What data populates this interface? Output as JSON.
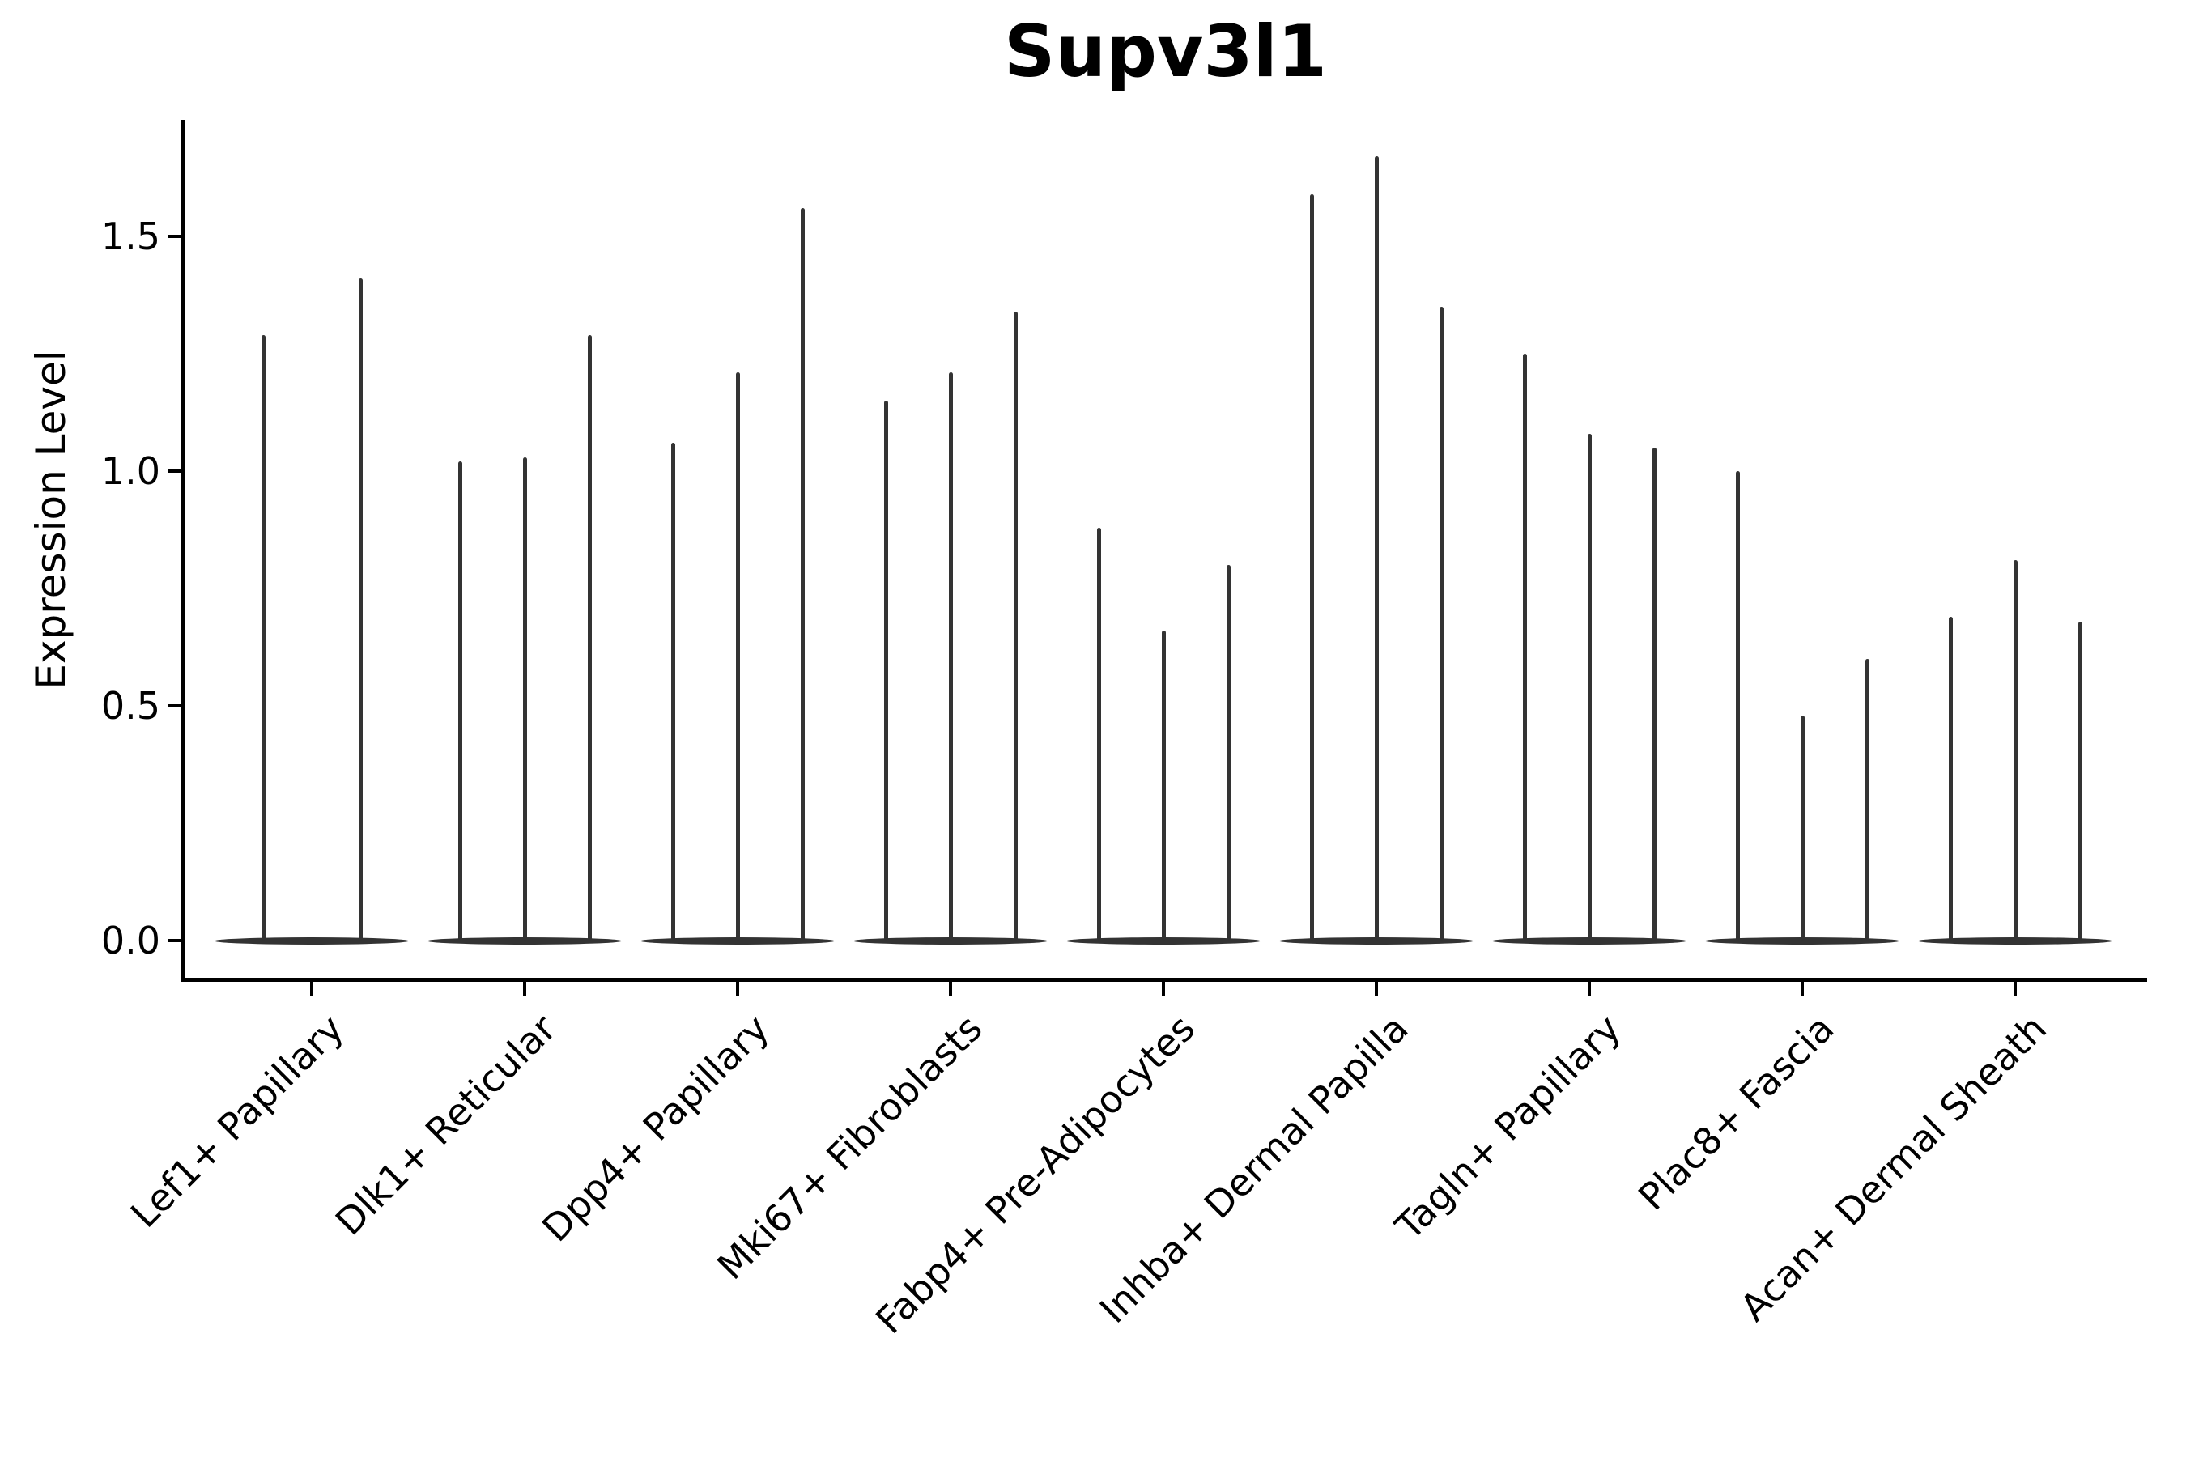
{
  "title": "Supv3l1",
  "axes": {
    "ylabel": "Expression Level"
  },
  "chart_data": {
    "type": "violin",
    "title": "Supv3l1",
    "xlabel": "",
    "ylabel": "Expression Level",
    "ylim": [
      -0.08,
      1.75
    ],
    "yticks": [
      0.0,
      0.5,
      1.0,
      1.5
    ],
    "ytick_labels": [
      "0.0",
      "0.5",
      "1.0",
      "1.5"
    ],
    "grid": false,
    "legend": null,
    "violin_color": "#333333",
    "axis_color": "#000000",
    "description": "Violin plot of gene expression; each category shows violins flattened at 0 with thin density spikes reaching the maximum expression values.",
    "categories": [
      "Lef1+ Papillary",
      "Dlk1+ Reticular",
      "Dpp4+ Papillary",
      "Mki67+ Fibroblasts",
      "Fabp4+ Pre-Adipocytes",
      "Inhba+ Dermal Papilla",
      "Tagln+ Papillary",
      "Plac8+ Fascia",
      "Acan+ Dermal Sheath"
    ],
    "spike_values": [
      [
        1.29,
        1.41
      ],
      [
        1.02,
        1.03,
        1.29
      ],
      [
        1.06,
        1.21,
        1.56
      ],
      [
        1.15,
        1.21,
        1.34
      ],
      [
        0.88,
        0.66,
        0.8
      ],
      [
        1.59,
        1.67,
        1.35
      ],
      [
        1.25,
        1.08,
        1.05
      ],
      [
        1.0,
        0.48,
        0.6
      ],
      [
        0.69,
        0.81,
        0.68
      ]
    ]
  }
}
